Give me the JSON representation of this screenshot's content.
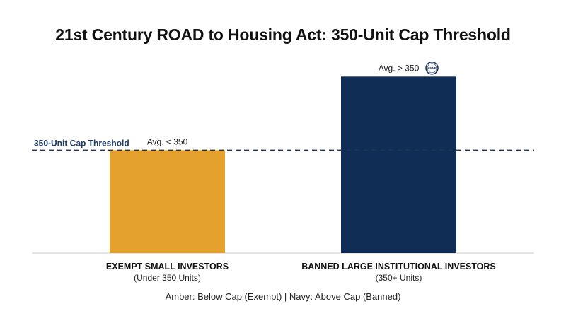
{
  "colors": {
    "amber": "#E5A12E",
    "navy": "#102D56",
    "threshold_line": "#1F3450",
    "threshold_label": "#1E3A66",
    "baseline": "#C8C8C8"
  },
  "badge": {
    "text": "BANNED",
    "icon": "banned-badge-icon"
  },
  "legend_note": "Amber: Below Cap (Exempt)  |  Navy: Above Cap (Banned)",
  "chart_data": {
    "type": "bar",
    "title": "21st Century ROAD to Housing Act: 350-Unit Cap Threshold",
    "xlabel": "",
    "ylabel": "",
    "grid": false,
    "legend": "none",
    "threshold": {
      "label": "350-Unit Cap Threshold",
      "value": 350,
      "style": "dashed"
    },
    "categories": [
      {
        "name": "EXEMPT SMALL INVESTORS",
        "sublabel": "(Under 350 Units)",
        "bar_label": "Avg. < 350",
        "color": "amber"
      },
      {
        "name": "BANNED LARGE INSTITUTIONAL INVESTORS",
        "sublabel": "(350+ Units)",
        "bar_label": "Avg. > 350",
        "color": "navy",
        "badge": true
      }
    ],
    "values": [
      350,
      600
    ],
    "ylim": [
      0,
      620
    ]
  }
}
